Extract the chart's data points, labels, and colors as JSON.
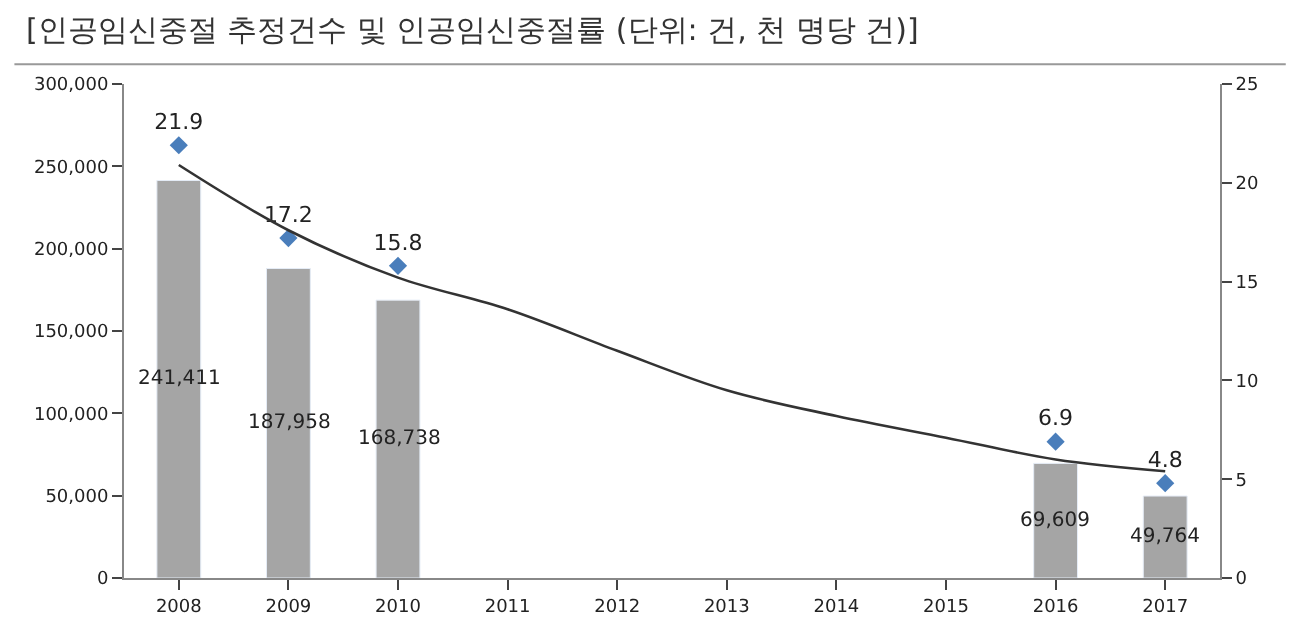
{
  "chart_data": {
    "type": "bar",
    "title": "[인공임신중절 추정건수 및 인공임신중절률 (단위: 건, 천 명당 건)]",
    "categories": [
      "2008",
      "2009",
      "2010",
      "2011",
      "2012",
      "2013",
      "2014",
      "2015",
      "2016",
      "2017"
    ],
    "series": [
      {
        "color": "#a5a5a5",
        "values": [
          241411,
          187958,
          168738,
          null,
          null,
          null,
          null,
          null,
          69609,
          49764
        ],
        "value_labels": [
          "241,411",
          "187,958",
          "168,738",
          null,
          null,
          null,
          null,
          null,
          "69,609",
          "49,764"
        ]
      },
      {
        "type": "scatter",
        "axis": "y2",
        "color": "#4a7ebb",
        "marker": "diamond",
        "values": [
          21.9,
          17.2,
          15.8,
          null,
          null,
          null,
          null,
          null,
          6.9,
          4.8
        ],
        "value_labels": [
          "21.9",
          "17.2",
          "15.8",
          null,
          null,
          null,
          null,
          null,
          "6.9",
          "4.8"
        ]
      },
      {
        "type": "line",
        "axis": "y2",
        "color": "#333333",
        "marker": "none",
        "values": [
          20.9,
          17.6,
          15.2,
          13.6,
          11.5,
          9.5,
          8.2,
          7.1,
          6.0,
          5.4
        ]
      }
    ],
    "ylim": [
      0,
      300000
    ],
    "yticks": [
      {
        "value": 0,
        "label": "0"
      },
      {
        "value": 50000,
        "label": "50,000"
      },
      {
        "value": 100000,
        "label": "100,000"
      },
      {
        "value": 150000,
        "label": "150,000"
      },
      {
        "value": 200000,
        "label": "200,000"
      },
      {
        "value": 250000,
        "label": "250,000"
      },
      {
        "value": 300000,
        "label": "300,000"
      }
    ],
    "y2lim": [
      0,
      25
    ],
    "y2ticks": [
      0,
      5,
      10,
      15,
      20,
      25
    ]
  }
}
